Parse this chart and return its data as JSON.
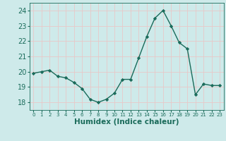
{
  "x": [
    0,
    1,
    2,
    3,
    4,
    5,
    6,
    7,
    8,
    9,
    10,
    11,
    12,
    13,
    14,
    15,
    16,
    17,
    18,
    19,
    20,
    21,
    22,
    23
  ],
  "y": [
    19.9,
    20.0,
    20.1,
    19.7,
    19.6,
    19.3,
    18.9,
    18.2,
    18.0,
    18.2,
    18.6,
    19.5,
    19.5,
    20.9,
    22.3,
    23.5,
    24.0,
    23.0,
    21.9,
    21.5,
    18.5,
    19.2,
    19.1,
    19.1
  ],
  "line_color": "#1a6b5a",
  "marker": "D",
  "marker_size": 2.2,
  "linewidth": 1.0,
  "xlabel": "Humidex (Indice chaleur)",
  "ylim": [
    17.5,
    24.5
  ],
  "xlim": [
    -0.5,
    23.5
  ],
  "yticks": [
    18,
    19,
    20,
    21,
    22,
    23,
    24
  ],
  "xticks": [
    0,
    1,
    2,
    3,
    4,
    5,
    6,
    7,
    8,
    9,
    10,
    11,
    12,
    13,
    14,
    15,
    16,
    17,
    18,
    19,
    20,
    21,
    22,
    23
  ],
  "bg_color": "#ceeaea",
  "grid_color": "#e8c8c8",
  "tick_color": "#1a6b5a",
  "xlabel_fontsize": 7.5,
  "ytick_fontsize": 7,
  "xtick_fontsize": 5.0
}
